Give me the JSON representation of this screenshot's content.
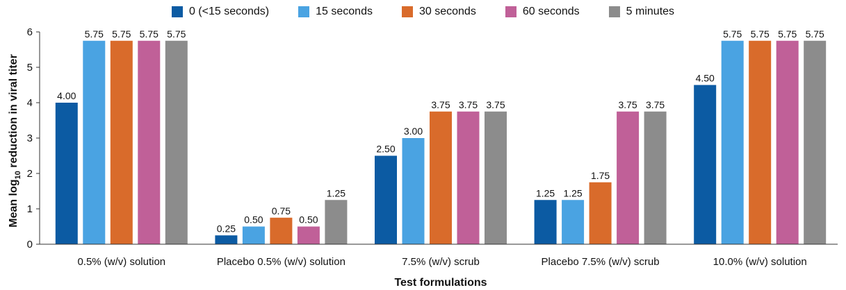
{
  "chart_data": {
    "type": "bar",
    "xlabel": "Test formulations",
    "ylabel_main": "Mean log",
    "ylabel_sub": "10",
    "ylabel_rest": " reduction in viral titer",
    "ylim": [
      0,
      6
    ],
    "yticks": [
      "0",
      "1",
      "2",
      "3",
      "4",
      "5",
      "6"
    ],
    "legend_position": "top",
    "categories": [
      "0.5% (w/v) solution",
      "Placebo 0.5% (w/v) solution",
      "7.5% (w/v) scrub",
      "Placebo 7.5% (w/v) scrub",
      "10.0% (w/v) solution"
    ],
    "series": [
      {
        "name": "0 (<15 seconds)",
        "color": "#0c5ba3",
        "values": [
          4.0,
          0.25,
          2.5,
          1.25,
          4.5
        ],
        "labels": [
          "4.00",
          "0.25",
          "2.50",
          "1.25",
          "4.50"
        ]
      },
      {
        "name": "15 seconds",
        "color": "#4aa3e2",
        "values": [
          5.75,
          0.5,
          3.0,
          1.25,
          5.75
        ],
        "labels": [
          "5.75",
          "0.50",
          "3.00",
          "1.25",
          "5.75"
        ]
      },
      {
        "name": "30 seconds",
        "color": "#d96b2b",
        "values": [
          5.75,
          0.75,
          3.75,
          1.75,
          5.75
        ],
        "labels": [
          "5.75",
          "0.75",
          "3.75",
          "1.75",
          "5.75"
        ]
      },
      {
        "name": "60 seconds",
        "color": "#c06098",
        "values": [
          5.75,
          0.5,
          3.75,
          3.75,
          5.75
        ],
        "labels": [
          "5.75",
          "0.50",
          "3.75",
          "3.75",
          "5.75"
        ]
      },
      {
        "name": "5 minutes",
        "color": "#8c8c8c",
        "values": [
          5.75,
          1.25,
          3.75,
          3.75,
          5.75
        ],
        "labels": [
          "5.75",
          "1.25",
          "3.75",
          "3.75",
          "5.75"
        ]
      }
    ]
  }
}
